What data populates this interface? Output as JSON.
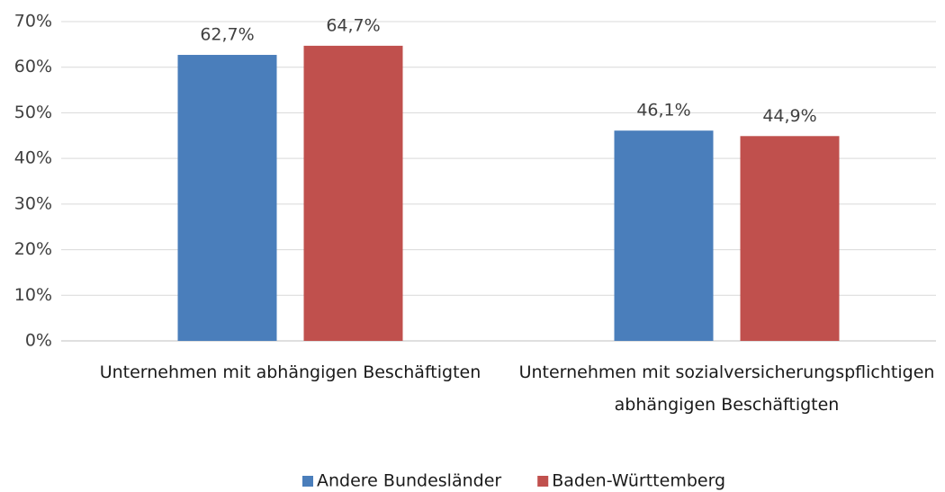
{
  "chart_data": {
    "type": "bar",
    "categories": [
      "Unternehmen mit abhängigen Beschäftigten",
      "Unternehmen mit sozialversicherungspflichtigen abhängigen Beschäftigten"
    ],
    "series": [
      {
        "name": "Andere Bundesländer",
        "color": "#4a7ebb",
        "values": [
          62.7,
          46.1
        ],
        "value_labels": [
          "62,7%",
          "46,1%"
        ]
      },
      {
        "name": "Baden-Württemberg",
        "color": "#c0504d",
        "values": [
          64.7,
          44.9
        ],
        "value_labels": [
          "64,7%",
          "44,9%"
        ]
      }
    ],
    "ylim": [
      0,
      70
    ],
    "yticks": [
      {
        "value": 0,
        "label": "0%"
      },
      {
        "value": 10,
        "label": "10%"
      },
      {
        "value": 20,
        "label": "20%"
      },
      {
        "value": 30,
        "label": "30%"
      },
      {
        "value": 40,
        "label": "40%"
      },
      {
        "value": 50,
        "label": "50%"
      },
      {
        "value": 60,
        "label": "60%"
      },
      {
        "value": 70,
        "label": "70%"
      }
    ],
    "grid": true,
    "legend": "bottom"
  }
}
